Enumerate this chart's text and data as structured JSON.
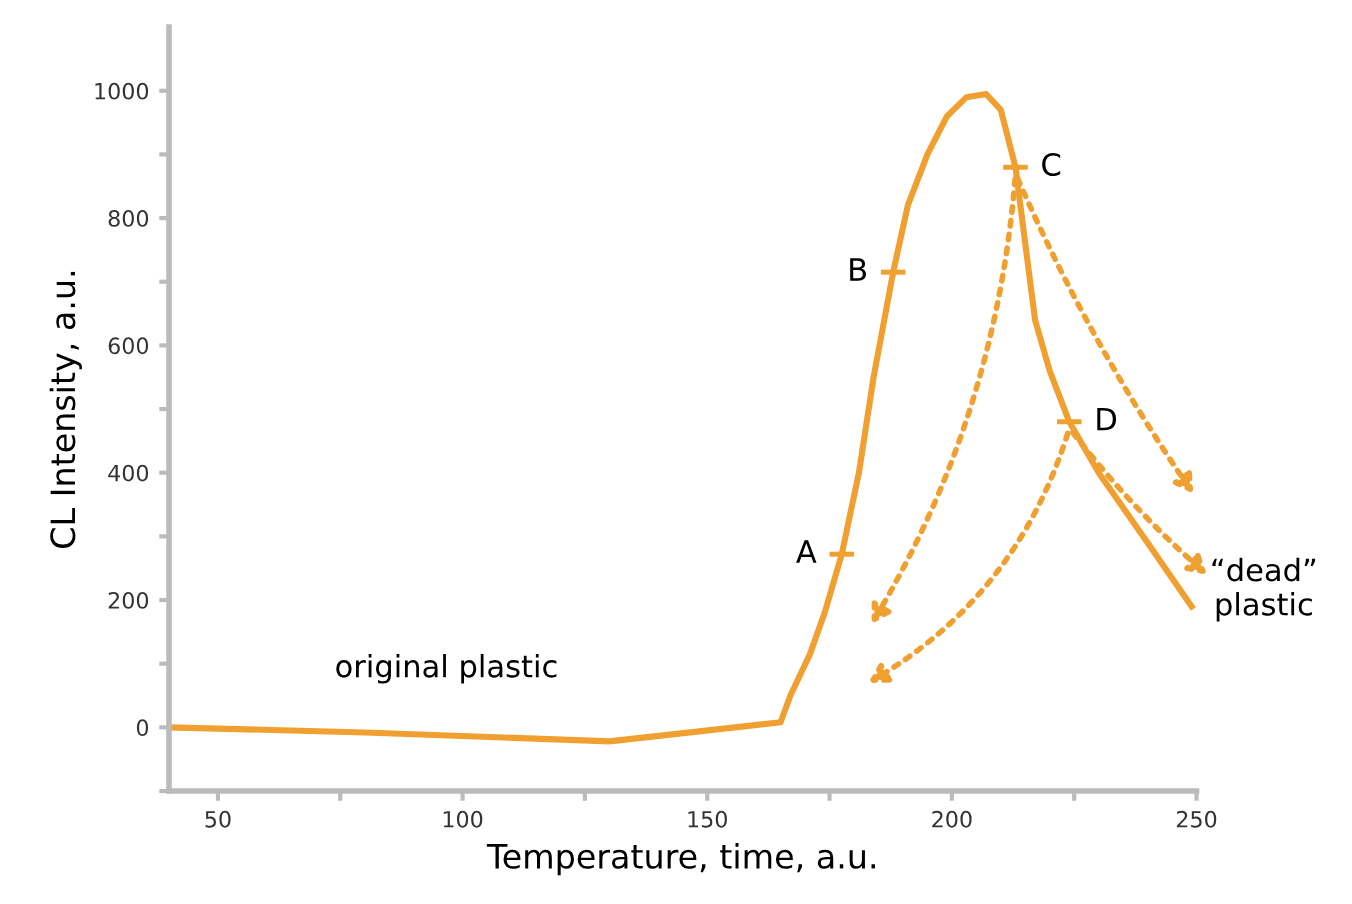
{
  "chart_data": {
    "type": "line",
    "xlabel": "Temperature, time, a.u.",
    "ylabel": "CL Intensity, a.u.",
    "x": [
      40,
      80,
      130,
      165,
      167,
      171,
      174,
      177.5,
      181,
      184,
      188,
      191,
      195,
      199,
      203,
      207,
      210,
      213,
      215,
      217,
      220,
      224,
      230,
      240,
      249
    ],
    "series": [
      {
        "color": "#f0a030",
        "values": [
          0,
          -8,
          -22,
          8,
          50,
          115,
          180,
          272,
          400,
          550,
          715,
          820,
          900,
          960,
          990,
          995,
          970,
          880,
          760,
          640,
          560,
          480,
          400,
          290,
          190
        ]
      }
    ],
    "xlim": [
      40,
      250
    ],
    "xticks": [
      50,
      {
        "value": 75,
        "label": null
      },
      100,
      {
        "value": 125,
        "label": null
      },
      150,
      {
        "value": 175,
        "label": null
      },
      200,
      {
        "value": 225,
        "label": null
      },
      250
    ],
    "ylim": [
      -100,
      1100
    ],
    "yticks": [
      {
        "value": -100,
        "label": null
      },
      0,
      {
        "value": 100,
        "label": null
      },
      200,
      {
        "value": 300,
        "label": null
      },
      400,
      {
        "value": 500,
        "label": null
      },
      600,
      {
        "value": 700,
        "label": null
      },
      800,
      {
        "value": 900,
        "label": null
      },
      1000
    ],
    "annotations": [
      {
        "text": "A",
        "x": 177.5,
        "y": 272
      },
      {
        "text": "B",
        "x": 188,
        "y": 715
      },
      {
        "text": "C",
        "x": 213,
        "y": 880
      },
      {
        "text": "D",
        "x": 224,
        "y": 480
      },
      "original plastic",
      {
        "text": "“dead”\nplastic",
        "x": 249,
        "y": 190
      }
    ],
    "grid": false,
    "legend": false,
    "marker": "none",
    "line_style": "solid"
  }
}
